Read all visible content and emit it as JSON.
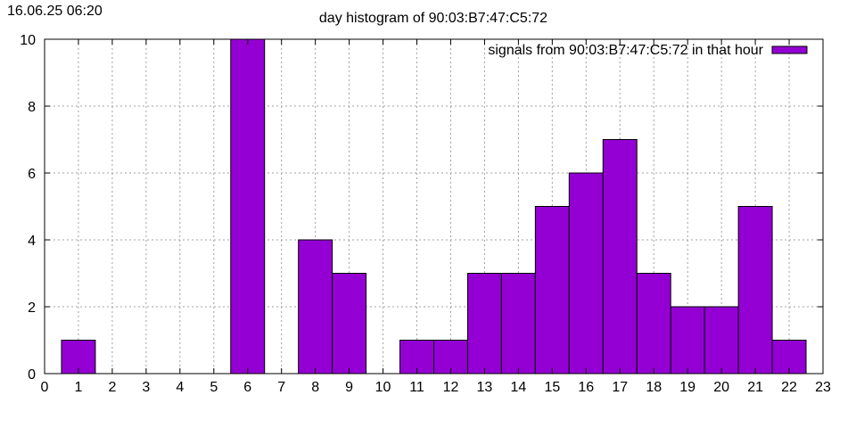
{
  "timestamp": "16.06.25 06:20",
  "chart_data": {
    "type": "bar",
    "title": "day histogram of 90:03:B7:47:C5:72",
    "xlabel": "",
    "ylabel": "",
    "xlim": [
      0,
      23
    ],
    "ylim": [
      0,
      10
    ],
    "x_ticks": [
      0,
      1,
      2,
      3,
      4,
      5,
      6,
      7,
      8,
      9,
      10,
      11,
      12,
      13,
      14,
      15,
      16,
      17,
      18,
      19,
      20,
      21,
      22,
      23
    ],
    "y_ticks": [
      0,
      2,
      4,
      6,
      8,
      10
    ],
    "grid": true,
    "legend_position": "top-right",
    "bar_color": "#9400d3",
    "series": [
      {
        "name": "signals from 90:03:B7:47:C5:72 in that hour",
        "x": [
          1,
          6,
          8,
          9,
          11,
          12,
          13,
          14,
          15,
          16,
          17,
          18,
          19,
          20,
          21,
          22
        ],
        "values": [
          1,
          10,
          4,
          3,
          1,
          1,
          3,
          3,
          5,
          6,
          7,
          3,
          2,
          2,
          5,
          1
        ]
      }
    ]
  }
}
